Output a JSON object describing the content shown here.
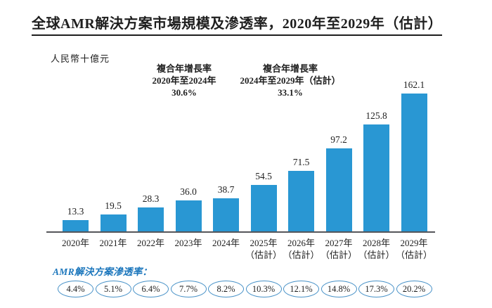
{
  "title": "全球AMR解決方案市場規模及滲透率，2020年至2029年（估計）",
  "unit_label": "人民幣十億元",
  "cagr_annotations": [
    {
      "label": "複合年增長率",
      "period": "2020年至2024年",
      "value": "30.6%"
    },
    {
      "label": "複合年增長率",
      "period": "2024年至2029年（估計）",
      "value": "33.1%"
    }
  ],
  "penetration_label": "AMR解決方案滲透率：",
  "colors": {
    "bar": "#2997d3",
    "axis": "#55565a",
    "oval_border": "#4791c7",
    "penetration_label_text": "#1b76bc",
    "text": "#1e1e1e"
  },
  "chart_data": {
    "type": "bar",
    "title": "全球AMR解決方案市場規模及滲透率，2020年至2029年（估計）",
    "ylabel": "人民幣十億元",
    "categories": [
      "2020年",
      "2021年",
      "2022年",
      "2023年",
      "2024年",
      "2025年",
      "2026年",
      "2027年",
      "2028年",
      "2029年"
    ],
    "category_notes": [
      "",
      "",
      "",
      "",
      "",
      "（估計）",
      "（估計）",
      "（估計）",
      "（估計）",
      "（估計）"
    ],
    "values": [
      13.3,
      19.5,
      28.3,
      36.0,
      38.7,
      54.5,
      71.5,
      97.2,
      125.8,
      162.1
    ],
    "value_labels": [
      "13.3",
      "19.5",
      "28.3",
      "36.0",
      "38.7",
      "54.5",
      "71.5",
      "97.2",
      "125.8",
      "162.1"
    ],
    "penetration_rates": [
      "4.4%",
      "5.1%",
      "6.4%",
      "7.7%",
      "8.2%",
      "10.3%",
      "12.1%",
      "14.8%",
      "17.3%",
      "20.2%"
    ],
    "ylim": [
      0,
      170
    ],
    "grid": false,
    "legend": "none",
    "cagr": [
      {
        "period": "2020年至2024年",
        "value": "30.6%"
      },
      {
        "period": "2024年至2029年（估計）",
        "value": "33.1%"
      }
    ]
  }
}
